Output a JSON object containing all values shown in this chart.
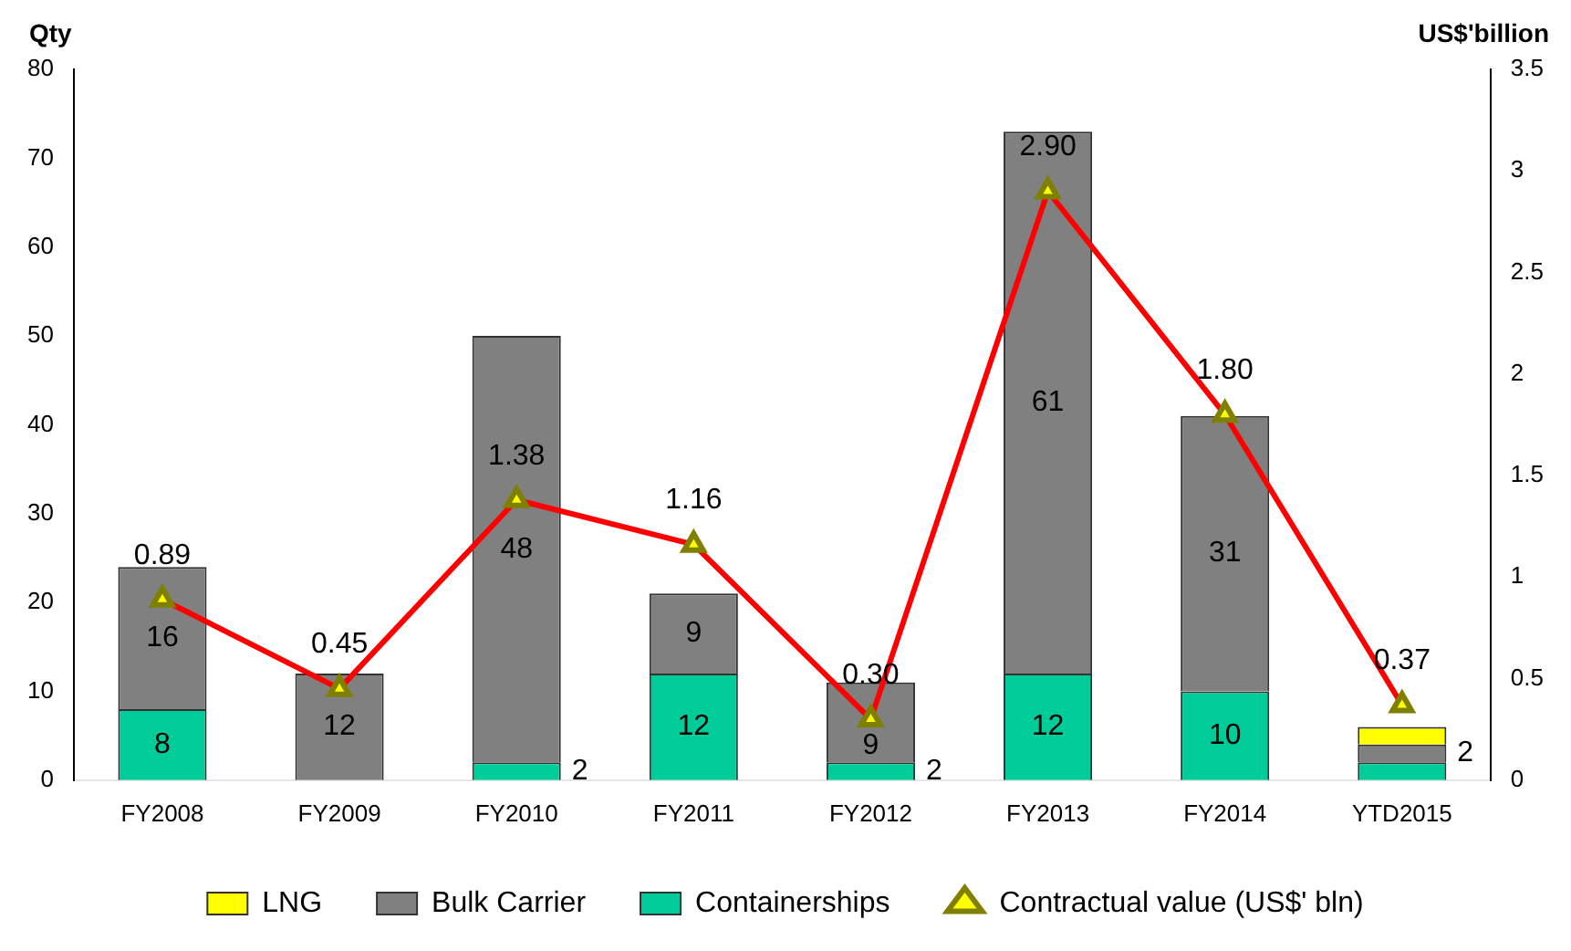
{
  "chart_data": {
    "type": "bar",
    "stacked": true,
    "ylabel": "Qty",
    "y2label": "US$'billion",
    "categories": [
      "FY2008",
      "FY2009",
      "FY2010",
      "FY2011",
      "FY2012",
      "FY2013",
      "FY2014",
      "YTD2015"
    ],
    "series": [
      {
        "name": "Containerships",
        "color": "#00cc99",
        "values": [
          8,
          0,
          2,
          12,
          2,
          12,
          10,
          2
        ],
        "value_labels": [
          "8",
          null,
          "2",
          "12",
          "2",
          "12",
          "10",
          null
        ]
      },
      {
        "name": "Bulk Carrier",
        "color": "#808080",
        "values": [
          16,
          12,
          48,
          9,
          9,
          61,
          31,
          2
        ],
        "value_labels": [
          "16",
          "12",
          "48",
          "9",
          "9",
          "61",
          "31",
          "2"
        ]
      },
      {
        "name": "LNG",
        "color": "#ffff00",
        "values": [
          0,
          0,
          0,
          0,
          0,
          0,
          0,
          2
        ],
        "value_labels": [
          null,
          null,
          null,
          null,
          null,
          null,
          null,
          null
        ]
      },
      {
        "name": "Contractual value (US$' bln)",
        "type": "line",
        "axis": "y2",
        "color": "#ff0000",
        "marker": "triangle",
        "values": [
          0.89,
          0.45,
          1.38,
          1.16,
          0.3,
          2.9,
          1.8,
          0.37
        ],
        "value_labels": [
          "0.89",
          "0.45",
          "1.38",
          "1.16",
          "0.30",
          "2.90",
          "1.80",
          "0.37"
        ]
      }
    ],
    "ylim": [
      0,
      80
    ],
    "yticks": [
      0,
      10,
      20,
      30,
      40,
      50,
      60,
      70,
      80
    ],
    "y2lim": [
      0,
      3.5
    ],
    "y2ticks": [
      0,
      0.5,
      1,
      1.5,
      2,
      2.5,
      3,
      3.5
    ],
    "grid": false,
    "legend": "bottom"
  }
}
